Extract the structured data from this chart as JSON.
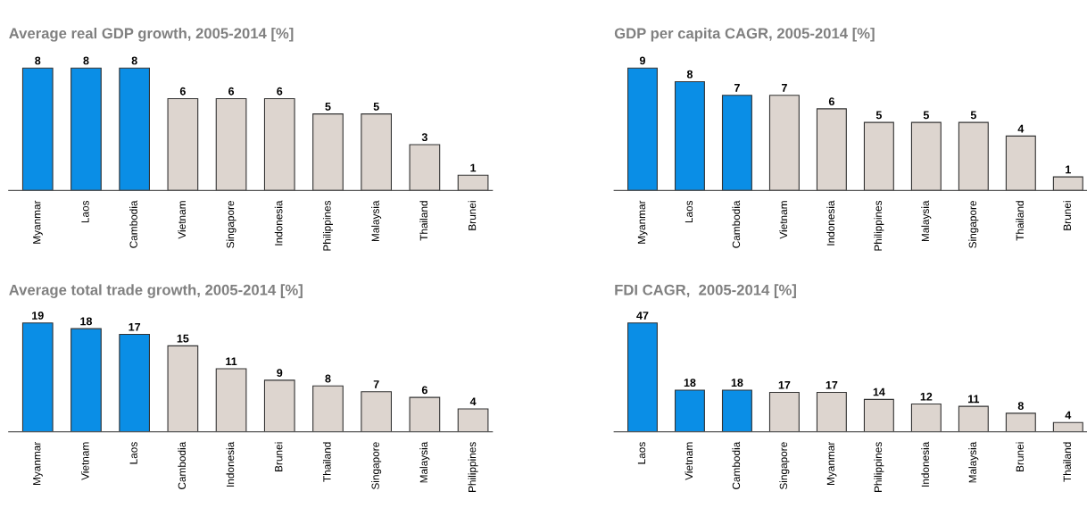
{
  "chart_data": [
    {
      "type": "bar",
      "title": "Average real GDP growth, 2005-2014 [%]",
      "categories": [
        "Myanmar",
        "Laos",
        "Cambodia",
        "Vietnam",
        "Singapore",
        "Indonesia",
        "Philippines",
        "Malaysia",
        "Thailand",
        "Brunei"
      ],
      "values": [
        8,
        8,
        8,
        6,
        6,
        6,
        5,
        5,
        3,
        1
      ],
      "colors": [
        "#0a8ee6",
        "#0a8ee6",
        "#0a8ee6",
        "#ddd5cf",
        "#ddd5cf",
        "#ddd5cf",
        "#ddd5cf",
        "#ddd5cf",
        "#ddd5cf",
        "#ddd5cf"
      ],
      "data_labels": true,
      "tick_labels": "x",
      "grid": false,
      "legend": false
    },
    {
      "type": "bar",
      "title": "GDP per capita CAGR, 2005-2014 [%]",
      "categories": [
        "Myanmar",
        "Laos",
        "Cambodia",
        "Vietnam",
        "Indonesia",
        "Philippines",
        "Malaysia",
        "Singapore",
        "Thailand",
        "Brunei"
      ],
      "values": [
        9,
        8,
        7,
        7,
        6,
        5,
        5,
        5,
        4,
        1
      ],
      "colors": [
        "#0a8ee6",
        "#0a8ee6",
        "#0a8ee6",
        "#ddd5cf",
        "#ddd5cf",
        "#ddd5cf",
        "#ddd5cf",
        "#ddd5cf",
        "#ddd5cf",
        "#ddd5cf"
      ],
      "data_labels": true,
      "tick_labels": "x",
      "grid": false,
      "legend": false
    },
    {
      "type": "bar",
      "title": "Average total trade growth, 2005-2014 [%]",
      "categories": [
        "Myanmar",
        "Vietnam",
        "Laos",
        "Cambodia",
        "Indonesia",
        "Brunei",
        "Thailand",
        "Singapore",
        "Malaysia",
        "Philippines"
      ],
      "values": [
        19,
        18,
        17,
        15,
        11,
        9,
        8,
        7,
        6,
        4
      ],
      "colors": [
        "#0a8ee6",
        "#0a8ee6",
        "#0a8ee6",
        "#ddd5cf",
        "#ddd5cf",
        "#ddd5cf",
        "#ddd5cf",
        "#ddd5cf",
        "#ddd5cf",
        "#ddd5cf"
      ],
      "data_labels": true,
      "tick_labels": "x",
      "grid": false,
      "legend": false
    },
    {
      "type": "bar",
      "title": "FDI CAGR,  2005-2014 [%]",
      "categories": [
        "Laos",
        "Vietnam",
        "Cambodia",
        "Singapore",
        "Myanmar",
        "Philippines",
        "Indonesia",
        "Malaysia",
        "Brunei",
        "Thailand"
      ],
      "values": [
        47,
        18,
        18,
        17,
        17,
        14,
        12,
        11,
        8,
        4
      ],
      "colors": [
        "#0a8ee6",
        "#0a8ee6",
        "#0a8ee6",
        "#ddd5cf",
        "#ddd5cf",
        "#ddd5cf",
        "#ddd5cf",
        "#ddd5cf",
        "#ddd5cf",
        "#ddd5cf"
      ],
      "data_labels": true,
      "tick_labels": "x",
      "grid": false,
      "legend": false
    }
  ]
}
